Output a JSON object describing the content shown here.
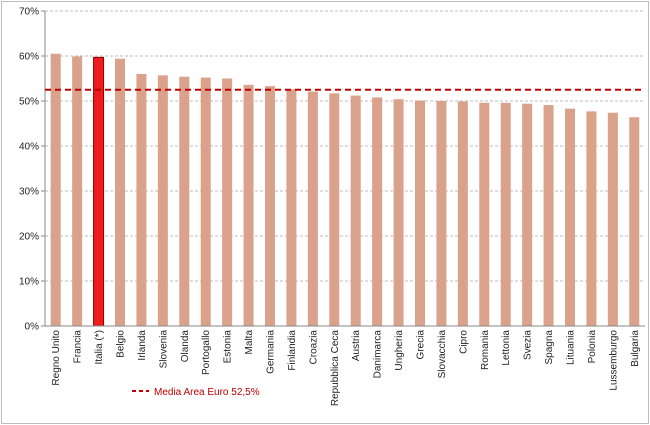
{
  "chart_data": {
    "type": "bar",
    "title": "",
    "xlabel": "",
    "ylabel": "",
    "ylim": [
      0,
      70
    ],
    "yticks": [
      "0%",
      "10%",
      "20%",
      "30%",
      "40%",
      "50%",
      "60%",
      "70%"
    ],
    "grid": true,
    "categories": [
      "Regno Unito",
      "Francia",
      "Italia (*)",
      "Belgio",
      "Irlanda",
      "Slovenia",
      "Olanda",
      "Portogallo",
      "Estonia",
      "Malta",
      "Germania",
      "Finlandia",
      "Croazia",
      "Repubblica Ceca",
      "Austria",
      "Danimarca",
      "Ungheria",
      "Grecia",
      "Slovacchia",
      "Cipro",
      "Romania",
      "Lettonia",
      "Svezia",
      "Spagna",
      "Lituania",
      "Polonia",
      "Lussemburgo",
      "Bulgaria"
    ],
    "values": [
      60.5,
      59.9,
      59.7,
      59.4,
      56.0,
      55.7,
      55.4,
      55.2,
      55.0,
      53.6,
      53.3,
      52.6,
      52.1,
      51.7,
      51.2,
      50.8,
      50.4,
      50.1,
      50.0,
      49.9,
      49.6,
      49.6,
      49.4,
      49.1,
      48.3,
      47.7,
      47.4,
      46.4
    ],
    "highlight_category": "Italia (*)",
    "reference_line": {
      "label": "Media Area Euro 52,5%",
      "value": 52.5
    },
    "colors": {
      "bar": "#dba28b",
      "highlight": "#ee1c1c",
      "highlight_border": "#8b0000",
      "reference": "#c00000",
      "grid": "#bdbdbd"
    },
    "legend_position": "bottom-left"
  }
}
